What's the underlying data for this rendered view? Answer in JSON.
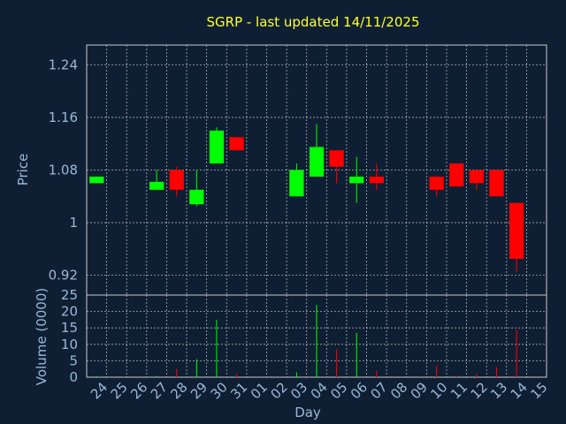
{
  "chart_data": {
    "type": "candlestick",
    "title": "SGRP - last updated 14/11/2025",
    "xlabel": "Day",
    "x_ticks": [
      "24",
      "25",
      "26",
      "27",
      "28",
      "29",
      "30",
      "31",
      "01",
      "02",
      "03",
      "04",
      "05",
      "06",
      "07",
      "08",
      "09",
      "10",
      "11",
      "12",
      "13",
      "14",
      "15"
    ],
    "price": {
      "ylabel": "Price",
      "ylim": [
        0.89,
        1.27
      ],
      "y_ticks": [
        1.24,
        1.16,
        1.08,
        1,
        0.92
      ],
      "y_tick_labels": [
        "1.24",
        "1.16",
        "1.08",
        "1",
        "0.92"
      ]
    },
    "volume": {
      "ylabel": "Volume (0000)",
      "ylim": [
        0,
        25
      ],
      "y_ticks": [
        25,
        20,
        15,
        10,
        5,
        0
      ],
      "y_tick_labels": [
        "25",
        "20",
        "15",
        "10",
        "5",
        "0"
      ]
    },
    "candles": [
      {
        "day": "24",
        "open": 1.06,
        "high": 1.07,
        "low": 1.06,
        "close": 1.07,
        "volume": 0.3
      },
      {
        "day": "27",
        "open": 1.05,
        "high": 1.08,
        "low": 1.05,
        "close": 1.062,
        "volume": 0.3
      },
      {
        "day": "28",
        "open": 1.08,
        "high": 1.085,
        "low": 1.04,
        "close": 1.05,
        "volume": 2.5
      },
      {
        "day": "29",
        "open": 1.028,
        "high": 1.08,
        "low": 1.025,
        "close": 1.05,
        "volume": 5.5
      },
      {
        "day": "30",
        "open": 1.09,
        "high": 1.145,
        "low": 1.09,
        "close": 1.14,
        "volume": 17.5
      },
      {
        "day": "31",
        "open": 1.13,
        "high": 1.13,
        "low": 1.11,
        "close": 1.11,
        "volume": 1.0
      },
      {
        "day": "03",
        "open": 1.04,
        "high": 1.09,
        "low": 1.04,
        "close": 1.08,
        "volume": 1.5
      },
      {
        "day": "04",
        "open": 1.07,
        "high": 1.15,
        "low": 1.07,
        "close": 1.115,
        "volume": 22.0
      },
      {
        "day": "05",
        "open": 1.11,
        "high": 1.11,
        "low": 1.06,
        "close": 1.085,
        "volume": 8.5
      },
      {
        "day": "06",
        "open": 1.06,
        "high": 1.1,
        "low": 1.03,
        "close": 1.07,
        "volume": 13.5
      },
      {
        "day": "07",
        "open": 1.07,
        "high": 1.09,
        "low": 1.05,
        "close": 1.06,
        "volume": 2.0
      },
      {
        "day": "10",
        "open": 1.07,
        "high": 1.07,
        "low": 1.04,
        "close": 1.05,
        "volume": 3.5
      },
      {
        "day": "11",
        "open": 1.09,
        "high": 1.09,
        "low": 1.055,
        "close": 1.055,
        "volume": 0.5
      },
      {
        "day": "12",
        "open": 1.08,
        "high": 1.08,
        "low": 1.05,
        "close": 1.06,
        "volume": 1.0
      },
      {
        "day": "13",
        "open": 1.08,
        "high": 1.08,
        "low": 1.04,
        "close": 1.04,
        "volume": 3.0
      },
      {
        "day": "14",
        "open": 1.03,
        "high": 1.03,
        "low": 0.925,
        "close": 0.945,
        "volume": 14.5
      }
    ],
    "colors": {
      "background": "#0f1f33",
      "up": "#00ff00",
      "down": "#ff0000",
      "grid": "#c8c8c8",
      "title": "#ffff33",
      "text": "#9ab8d6"
    },
    "grid": true
  }
}
